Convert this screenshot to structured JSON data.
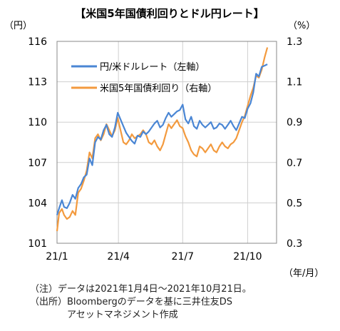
{
  "chart_data": {
    "type": "line",
    "title": "【米国5年国債利回りとドル円レート】",
    "left_unit": "（円）",
    "right_unit": "（%）",
    "x_unit": "（年/月）",
    "x_ticks": [
      {
        "label": "21/1",
        "day": 0
      },
      {
        "label": "21/4",
        "day": 87
      },
      {
        "label": "21/7",
        "day": 178
      },
      {
        "label": "21/10",
        "day": 270
      }
    ],
    "x_range": [
      0,
      311
    ],
    "left_axis": {
      "ylim": [
        101,
        116
      ],
      "ticks": [
        101,
        104,
        107,
        110,
        113,
        116
      ]
    },
    "right_axis": {
      "ylim": [
        0.3,
        1.3
      ],
      "ticks": [
        0.3,
        0.5,
        0.7,
        0.9,
        1.1,
        1.3
      ],
      "tick_labels": [
        "0.3",
        "0.5",
        "0.7",
        "0.9",
        "1.1",
        "1.3"
      ]
    },
    "grid": true,
    "legend_position": "top-left",
    "series": [
      {
        "name": "円/米ドルレート（左軸）",
        "axis": "left",
        "color": "#4a86d4",
        "points": [
          [
            0,
            103.1
          ],
          [
            3,
            103.6
          ],
          [
            7,
            104.2
          ],
          [
            10,
            103.7
          ],
          [
            14,
            103.6
          ],
          [
            18,
            104.0
          ],
          [
            22,
            104.6
          ],
          [
            26,
            104.3
          ],
          [
            30,
            105.1
          ],
          [
            34,
            105.4
          ],
          [
            38,
            105.9
          ],
          [
            42,
            106.1
          ],
          [
            46,
            107.3
          ],
          [
            50,
            106.8
          ],
          [
            54,
            108.5
          ],
          [
            58,
            108.9
          ],
          [
            62,
            108.7
          ],
          [
            66,
            109.4
          ],
          [
            70,
            109.8
          ],
          [
            74,
            109.1
          ],
          [
            78,
            108.9
          ],
          [
            82,
            109.6
          ],
          [
            86,
            110.7
          ],
          [
            90,
            110.2
          ],
          [
            94,
            109.7
          ],
          [
            98,
            109.2
          ],
          [
            102,
            108.9
          ],
          [
            106,
            108.6
          ],
          [
            110,
            108.4
          ],
          [
            114,
            109.0
          ],
          [
            118,
            108.9
          ],
          [
            122,
            109.3
          ],
          [
            126,
            109.1
          ],
          [
            130,
            109.3
          ],
          [
            134,
            109.6
          ],
          [
            138,
            109.9
          ],
          [
            142,
            110.1
          ],
          [
            146,
            109.6
          ],
          [
            150,
            109.8
          ],
          [
            154,
            110.3
          ],
          [
            158,
            110.7
          ],
          [
            162,
            110.4
          ],
          [
            166,
            110.6
          ],
          [
            170,
            110.8
          ],
          [
            174,
            110.9
          ],
          [
            178,
            111.3
          ],
          [
            182,
            110.2
          ],
          [
            186,
            109.9
          ],
          [
            190,
            110.4
          ],
          [
            194,
            109.7
          ],
          [
            198,
            109.5
          ],
          [
            202,
            110.1
          ],
          [
            206,
            109.8
          ],
          [
            210,
            109.6
          ],
          [
            214,
            109.8
          ],
          [
            218,
            110.0
          ],
          [
            222,
            109.5
          ],
          [
            226,
            109.6
          ],
          [
            230,
            109.9
          ],
          [
            234,
            109.8
          ],
          [
            238,
            109.5
          ],
          [
            242,
            109.8
          ],
          [
            246,
            110.1
          ],
          [
            250,
            109.7
          ],
          [
            254,
            109.4
          ],
          [
            258,
            109.9
          ],
          [
            262,
            110.4
          ],
          [
            266,
            110.3
          ],
          [
            270,
            111.0
          ],
          [
            274,
            111.4
          ],
          [
            278,
            112.2
          ],
          [
            282,
            113.6
          ],
          [
            286,
            113.4
          ],
          [
            290,
            114.1
          ],
          [
            294,
            114.2
          ],
          [
            298,
            114.3
          ]
        ]
      },
      {
        "name": "米国5年国債利回り（右軸）",
        "axis": "right",
        "color": "#f39a3e",
        "points": [
          [
            0,
            0.36
          ],
          [
            3,
            0.45
          ],
          [
            7,
            0.47
          ],
          [
            10,
            0.44
          ],
          [
            14,
            0.42
          ],
          [
            18,
            0.43
          ],
          [
            22,
            0.46
          ],
          [
            26,
            0.44
          ],
          [
            30,
            0.55
          ],
          [
            34,
            0.57
          ],
          [
            38,
            0.61
          ],
          [
            42,
            0.66
          ],
          [
            46,
            0.75
          ],
          [
            50,
            0.72
          ],
          [
            54,
            0.82
          ],
          [
            58,
            0.84
          ],
          [
            62,
            0.81
          ],
          [
            66,
            0.84
          ],
          [
            70,
            0.89
          ],
          [
            74,
            0.86
          ],
          [
            78,
            0.83
          ],
          [
            82,
            0.86
          ],
          [
            86,
            0.92
          ],
          [
            90,
            0.86
          ],
          [
            94,
            0.8
          ],
          [
            98,
            0.79
          ],
          [
            102,
            0.81
          ],
          [
            106,
            0.84
          ],
          [
            110,
            0.82
          ],
          [
            114,
            0.83
          ],
          [
            118,
            0.84
          ],
          [
            122,
            0.86
          ],
          [
            126,
            0.84
          ],
          [
            130,
            0.8
          ],
          [
            134,
            0.79
          ],
          [
            138,
            0.81
          ],
          [
            142,
            0.78
          ],
          [
            146,
            0.76
          ],
          [
            150,
            0.79
          ],
          [
            154,
            0.84
          ],
          [
            158,
            0.89
          ],
          [
            162,
            0.87
          ],
          [
            166,
            0.89
          ],
          [
            170,
            0.91
          ],
          [
            174,
            0.88
          ],
          [
            178,
            0.87
          ],
          [
            182,
            0.83
          ],
          [
            186,
            0.8
          ],
          [
            190,
            0.76
          ],
          [
            194,
            0.74
          ],
          [
            198,
            0.73
          ],
          [
            202,
            0.78
          ],
          [
            206,
            0.77
          ],
          [
            210,
            0.75
          ],
          [
            214,
            0.77
          ],
          [
            218,
            0.79
          ],
          [
            222,
            0.76
          ],
          [
            226,
            0.75
          ],
          [
            230,
            0.78
          ],
          [
            234,
            0.8
          ],
          [
            238,
            0.78
          ],
          [
            242,
            0.77
          ],
          [
            246,
            0.79
          ],
          [
            250,
            0.8
          ],
          [
            254,
            0.82
          ],
          [
            258,
            0.86
          ],
          [
            262,
            0.9
          ],
          [
            266,
            0.93
          ],
          [
            270,
            0.98
          ],
          [
            274,
            1.03
          ],
          [
            278,
            1.07
          ],
          [
            282,
            1.13
          ],
          [
            286,
            1.12
          ],
          [
            290,
            1.16
          ],
          [
            294,
            1.22
          ],
          [
            298,
            1.27
          ]
        ]
      }
    ]
  },
  "notes": {
    "line1": "（注）データは2021年1月4日～2021年10月21日。",
    "line2": "（出所）Bloombergのデータを基に三井住友DS",
    "line3": "　　　　アセットマネジメント作成"
  }
}
